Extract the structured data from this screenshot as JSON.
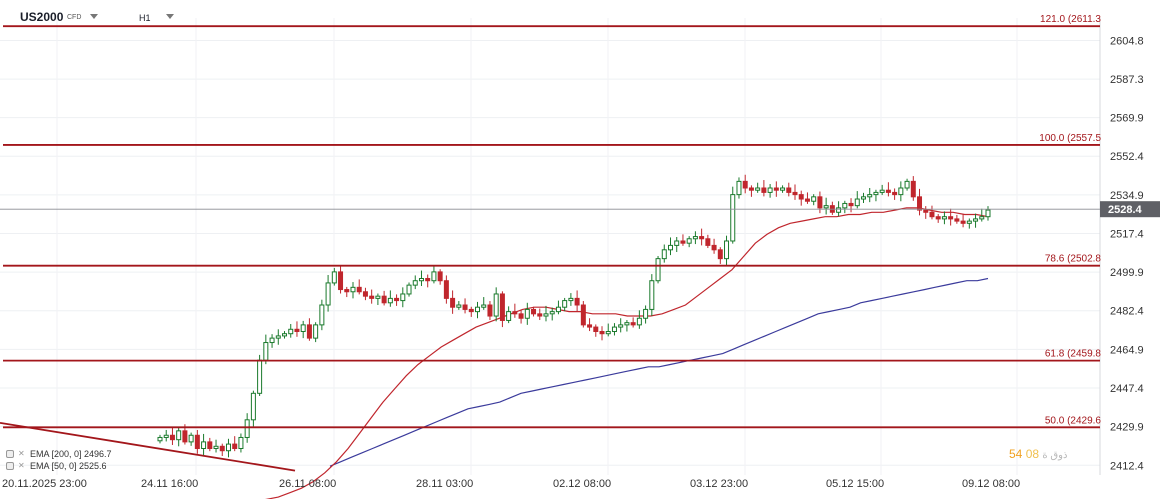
{
  "header": {
    "symbol": "US2000",
    "symbol_suffix": "CFD",
    "timeframe": "H1"
  },
  "indicators": [
    {
      "label": "EMA [200, 0]  2496.7",
      "color": "#3b3b9c"
    },
    {
      "label": "EMA [50, 0]  2525.6",
      "color": "#c0262d"
    }
  ],
  "watermark": {
    "text_a": "54",
    "text_b": "08",
    "text_c": "ذوق ة"
  },
  "colors": {
    "up": "#1a7a2c",
    "down": "#c0262d",
    "fib": "#a3161b",
    "ema50": "#c0262d",
    "ema200": "#3b3b9c",
    "price_tag": "#5f6066"
  },
  "chart_data": {
    "type": "candlestick",
    "y_ticks": [
      "2604.8",
      "2587.3",
      "2569.9",
      "2552.4",
      "2534.9",
      "2517.4",
      "2499.9",
      "2482.4",
      "2464.9",
      "2447.4",
      "2429.9",
      "2412.4"
    ],
    "x_ticks": [
      "20.11.2025  23:00",
      "24.11  16:00",
      "26.11  08:00",
      "28.11  03:00",
      "02.12  08:00",
      "03.12  23:00",
      "05.12  15:00",
      "09.12  08:00"
    ],
    "ylim": [
      2408,
      2615
    ],
    "current_price": "2528.4",
    "fib_levels": [
      {
        "ratio": "121.0",
        "label": "121.0 (2611.3",
        "value": 2611.3
      },
      {
        "ratio": "100.0",
        "label": "100.0 (2557.5",
        "value": 2557.5
      },
      {
        "ratio": "78.6",
        "label": "78.6 (2502.8",
        "value": 2502.8
      },
      {
        "ratio": "61.8",
        "label": "61.8 (2459.8",
        "value": 2459.8
      },
      {
        "ratio": "50.0",
        "label": "50.0 (2429.6",
        "value": 2429.6
      }
    ],
    "close_path": [
      2425,
      2426,
      2424,
      2428,
      2423,
      2426,
      2420,
      2423,
      2420,
      2421,
      2419,
      2422,
      2420,
      2425,
      2433,
      2445,
      2460,
      2468,
      2470,
      2471,
      2472,
      2474,
      2473,
      2476,
      2470,
      2476,
      2485,
      2495,
      2500,
      2492,
      2491,
      2493,
      2491,
      2489,
      2488,
      2489,
      2486,
      2488,
      2487,
      2490,
      2494,
      2496,
      2497,
      2496,
      2500,
      2496,
      2488,
      2484,
      2485,
      2483,
      2482,
      2484,
      2485,
      2480,
      2490,
      2478,
      2482,
      2481,
      2479,
      2483,
      2481,
      2480,
      2481,
      2482,
      2484,
      2487,
      2488,
      2485,
      2476,
      2475,
      2473,
      2472,
      2473,
      2475,
      2476,
      2477,
      2476,
      2479,
      2483,
      2496,
      2506,
      2510,
      2512,
      2514,
      2513,
      2515,
      2516,
      2515,
      2512,
      2510,
      2506,
      2514,
      2535,
      2541,
      2538,
      2537,
      2538,
      2536,
      2538,
      2537,
      2538,
      2536,
      2535,
      2533,
      2532,
      2534,
      2529,
      2530,
      2527,
      2529,
      2531,
      2530,
      2533,
      2534,
      2535,
      2536,
      2537,
      2536,
      2535,
      2538,
      2541,
      2534,
      2528,
      2527,
      2525,
      2524,
      2525,
      2524,
      2523,
      2522,
      2523,
      2524,
      2525,
      2528
    ],
    "ema50_path": [
      2396,
      2397,
      2398,
      2400,
      2402,
      2405,
      2409,
      2414,
      2420,
      2427,
      2434,
      2441,
      2447,
      2453,
      2458,
      2462,
      2466,
      2469,
      2472,
      2475,
      2477,
      2479,
      2481,
      2483,
      2484,
      2484,
      2483,
      2482,
      2482,
      2481,
      2481,
      2481,
      2480,
      2480,
      2480,
      2481,
      2483,
      2485,
      2489,
      2493,
      2497,
      2501,
      2507,
      2513,
      2517,
      2520,
      2522,
      2523,
      2524,
      2525,
      2525,
      2526,
      2526,
      2527,
      2527,
      2528,
      2529,
      2529,
      2528,
      2527,
      2527,
      2526,
      2526,
      2525
    ],
    "ema200_path": [
      2412,
      2414,
      2416,
      2418,
      2420,
      2422,
      2424,
      2426,
      2428,
      2430,
      2432,
      2434,
      2436,
      2438,
      2439,
      2440,
      2441,
      2443,
      2445,
      2446,
      2447,
      2448,
      2449,
      2450,
      2451,
      2452,
      2453,
      2454,
      2455,
      2456,
      2457,
      2457,
      2458,
      2459,
      2460,
      2461,
      2462,
      2463,
      2465,
      2467,
      2469,
      2471,
      2473,
      2475,
      2477,
      2479,
      2481,
      2482,
      2483,
      2484,
      2486,
      2487,
      2488,
      2489,
      2490,
      2491,
      2492,
      2493,
      2494,
      2495,
      2496,
      2496,
      2497
    ],
    "trendline": {
      "from": 2431.6,
      "to": 2410
    }
  }
}
